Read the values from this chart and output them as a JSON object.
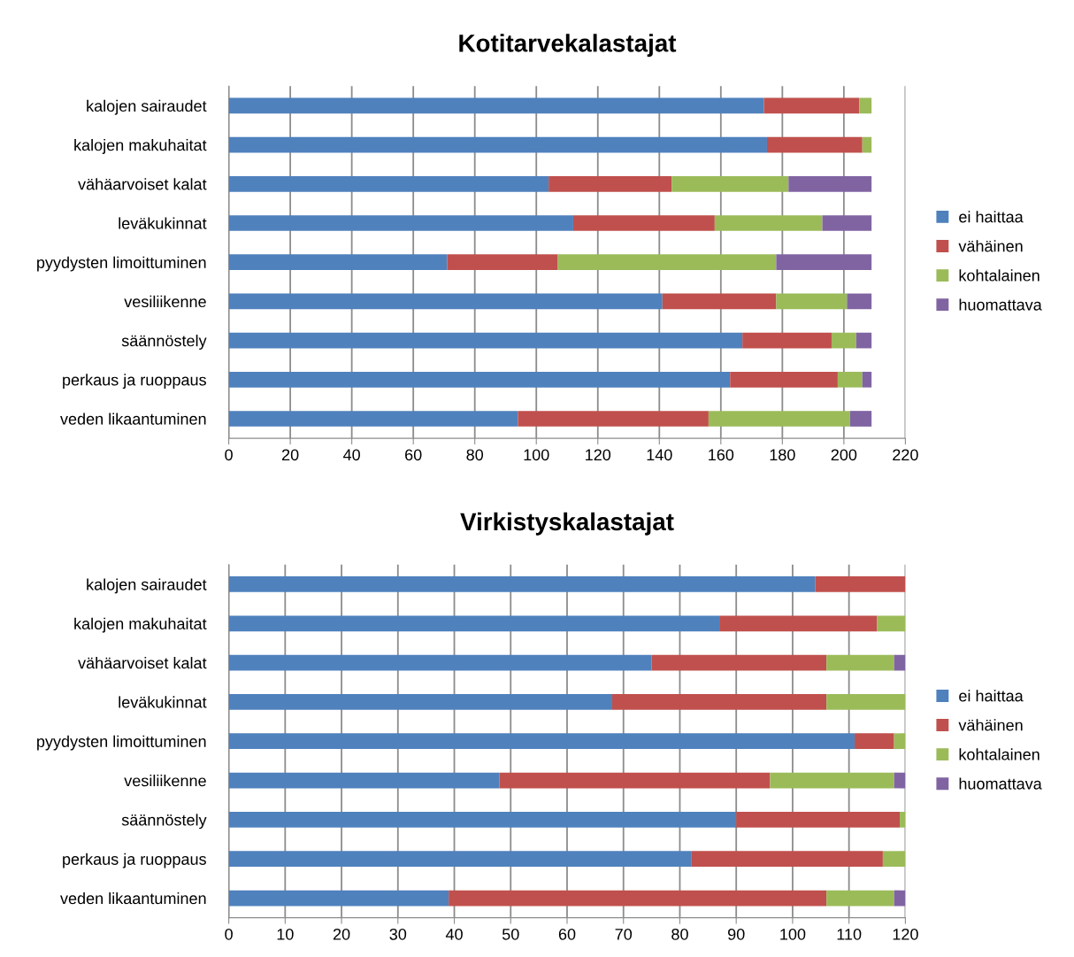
{
  "chart_data": [
    {
      "type": "bar",
      "orientation": "horizontal",
      "stacked": true,
      "title": "Kotitarvekalastajat",
      "categories": [
        "kalojen sairaudet",
        "kalojen makuhaitat",
        "vähäarvoiset kalat",
        "leväkukinnat",
        "pyydysten limoittuminen",
        "vesiliikenne",
        "säännöstely",
        "perkaus ja ruoppaus",
        "veden likaantuminen"
      ],
      "series": [
        {
          "name": "ei haittaa",
          "color": "#4f81bd",
          "values": [
            174,
            175,
            104,
            112,
            71,
            141,
            167,
            163,
            94
          ]
        },
        {
          "name": "vähäinen",
          "color": "#c0504d",
          "values": [
            31,
            31,
            40,
            46,
            36,
            37,
            29,
            35,
            62
          ]
        },
        {
          "name": "kohtalainen",
          "color": "#9bbb59",
          "values": [
            4,
            3,
            38,
            35,
            71,
            23,
            8,
            8,
            46
          ]
        },
        {
          "name": "huomattava",
          "color": "#8064a2",
          "values": [
            0,
            0,
            27,
            16,
            31,
            8,
            5,
            3,
            7
          ]
        }
      ],
      "xlim": [
        0,
        220
      ],
      "xticks": [
        0,
        20,
        40,
        60,
        80,
        100,
        120,
        140,
        160,
        180,
        200,
        220
      ],
      "grid": "x",
      "legend": "right"
    },
    {
      "type": "bar",
      "orientation": "horizontal",
      "stacked": true,
      "title": "Virkistyskalastajat",
      "categories": [
        "kalojen sairaudet",
        "kalojen makuhaitat",
        "vähäarvoiset kalat",
        "leväkukinnat",
        "pyydysten limoittuminen",
        "vesiliikenne",
        "säännöstely",
        "perkaus ja ruoppaus",
        "veden likaantuminen"
      ],
      "series": [
        {
          "name": "ei haittaa",
          "color": "#4f81bd",
          "values": [
            104,
            87,
            75,
            68,
            111,
            48,
            90,
            82,
            39
          ]
        },
        {
          "name": "vähäinen",
          "color": "#c0504d",
          "values": [
            16,
            28,
            31,
            38,
            7,
            48,
            29,
            34,
            67
          ]
        },
        {
          "name": "kohtalainen",
          "color": "#9bbb59",
          "values": [
            0,
            5,
            12,
            14,
            2,
            22,
            1,
            4,
            12
          ]
        },
        {
          "name": "huomattava",
          "color": "#8064a2",
          "values": [
            0,
            0,
            2,
            0,
            0,
            2,
            0,
            0,
            2
          ]
        }
      ],
      "xlim": [
        0,
        120
      ],
      "xticks": [
        0,
        10,
        20,
        30,
        40,
        50,
        60,
        70,
        80,
        90,
        100,
        110,
        120
      ],
      "grid": "x",
      "legend": "right"
    }
  ]
}
